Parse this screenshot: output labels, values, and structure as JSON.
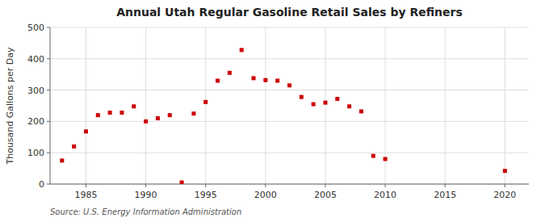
{
  "chart_data": {
    "type": "scatter",
    "title": "Annual Utah Regular Gasoline Retail Sales by Refiners",
    "y_label": "Thousand Gallons per Day",
    "source": "Source: U.S. Energy Information Administration",
    "color": "#cc0000",
    "marker": "square",
    "x": [
      1983,
      1984,
      1985,
      1986,
      1987,
      1988,
      1989,
      1990,
      1991,
      1992,
      1993,
      1994,
      1995,
      1996,
      1997,
      1998,
      1999,
      2000,
      2001,
      2002,
      2003,
      2004,
      2005,
      2006,
      2007,
      2008,
      2009,
      2010,
      2020
    ],
    "values": [
      75,
      120,
      168,
      220,
      228,
      228,
      248,
      200,
      210,
      220,
      5,
      225,
      262,
      330,
      355,
      428,
      338,
      332,
      330,
      315,
      278,
      255,
      260,
      272,
      248,
      232,
      90,
      80,
      42
    ],
    "xlim": [
      1982,
      2022
    ],
    "ylim": [
      0,
      500
    ],
    "xticks": [
      1985,
      1990,
      1995,
      2000,
      2005,
      2010,
      2015,
      2020
    ],
    "yticks": [
      0,
      100,
      200,
      300,
      400,
      500
    ],
    "grid": true
  }
}
